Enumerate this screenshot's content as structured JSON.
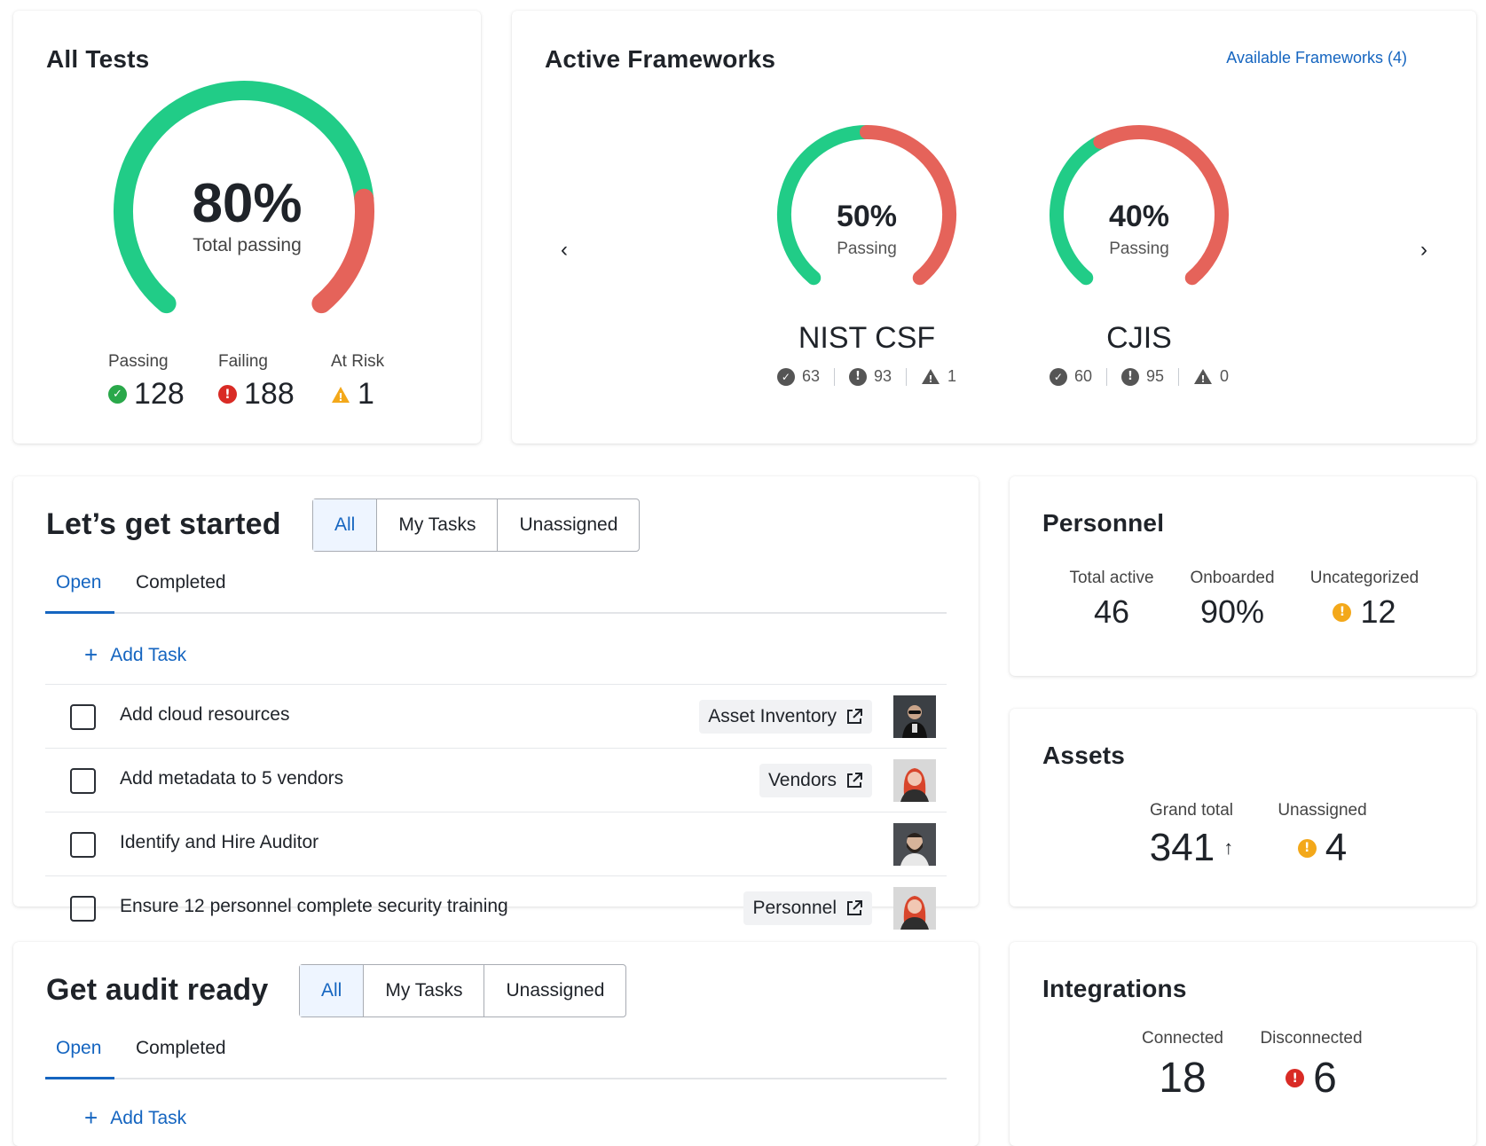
{
  "colors": {
    "green": "#21cc87",
    "red": "#e5635a",
    "blue": "#1565c0",
    "amber": "#f3a81a",
    "danger": "#d92b25",
    "pass_icon": "#2aa84a"
  },
  "all_tests": {
    "title": "All Tests",
    "percent": "80%",
    "percent_value": 0.8,
    "subtitle": "Total passing",
    "stats": [
      {
        "label": "Passing",
        "value": "128",
        "icon": "check-circle-icon"
      },
      {
        "label": "Failing",
        "value": "188",
        "icon": "error-circle-icon"
      },
      {
        "label": "At Risk",
        "value": "1",
        "icon": "warning-triangle-icon"
      }
    ]
  },
  "frameworks": {
    "title": "Active Frameworks",
    "available_link": "Available Frameworks (4)",
    "prev_label": "‹",
    "next_label": "›",
    "items": [
      {
        "name": "NIST CSF",
        "percent": "50%",
        "percent_value": 0.5,
        "sub": "Passing",
        "passing": "63",
        "failing": "93",
        "risk": "1"
      },
      {
        "name": "CJIS",
        "percent": "40%",
        "percent_value": 0.4,
        "sub": "Passing",
        "passing": "60",
        "failing": "95",
        "risk": "0"
      }
    ]
  },
  "get_started": {
    "title": "Let’s get started",
    "filters": [
      "All",
      "My Tasks",
      "Unassigned"
    ],
    "tabs": [
      "Open",
      "Completed"
    ],
    "add_task": "Add Task",
    "add_icon": "+",
    "tasks": [
      {
        "text": "Add cloud resources",
        "chip": "Asset Inventory",
        "avatar": "avatar-man-sunglasses"
      },
      {
        "text": "Add metadata to 5 vendors",
        "chip": "Vendors",
        "avatar": "avatar-woman-red-hair"
      },
      {
        "text": "Identify and Hire Auditor",
        "chip": "",
        "avatar": "avatar-man-beard"
      },
      {
        "text": "Ensure 12 personnel complete security training",
        "chip": "Personnel",
        "avatar": "avatar-woman-red-hair"
      }
    ]
  },
  "audit_ready": {
    "title": "Get audit ready",
    "filters": [
      "All",
      "My Tasks",
      "Unassigned"
    ],
    "tabs": [
      "Open",
      "Completed"
    ],
    "add_task": "Add Task",
    "add_icon": "+"
  },
  "personnel": {
    "title": "Personnel",
    "metrics": [
      {
        "label": "Total active",
        "value": "46"
      },
      {
        "label": "Onboarded",
        "value": "90%"
      },
      {
        "label": "Uncategorized",
        "value": "12",
        "icon": "warning-circle-icon"
      }
    ]
  },
  "assets": {
    "title": "Assets",
    "metrics": [
      {
        "label": "Grand total",
        "value": "341",
        "trend": "↑"
      },
      {
        "label": "Unassigned",
        "value": "4",
        "icon": "warning-circle-icon"
      }
    ]
  },
  "integrations": {
    "title": "Integrations",
    "metrics": [
      {
        "label": "Connected",
        "value": "18"
      },
      {
        "label": "Disconnected",
        "value": "6",
        "icon": "error-circle-icon"
      }
    ]
  }
}
